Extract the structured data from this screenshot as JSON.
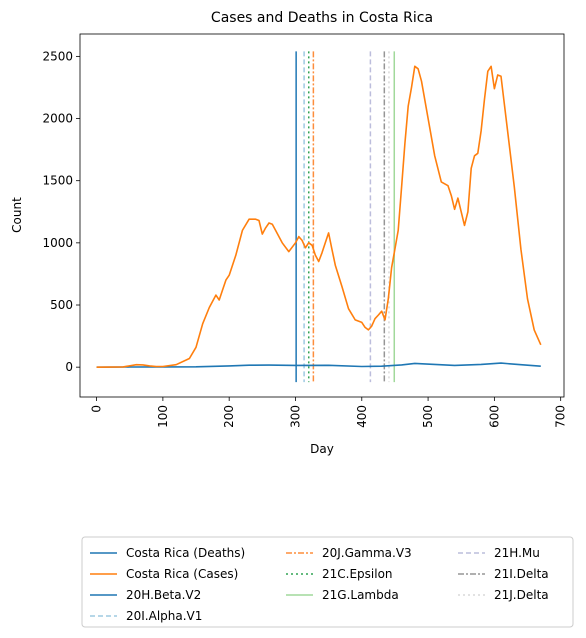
{
  "chart_data": {
    "type": "line",
    "title": "Cases and Deaths in Costa Rica",
    "xlabel": "Day",
    "ylabel": "Count",
    "xlim": [
      -25,
      705
    ],
    "ylim": [
      -240,
      2680
    ],
    "xticks": [
      0,
      100,
      200,
      300,
      400,
      500,
      600,
      700
    ],
    "yticks": [
      0,
      500,
      1000,
      1500,
      2000,
      2500
    ],
    "series": [
      {
        "name": "Costa Rica (Deaths)",
        "color": "#1f77b4",
        "x": [
          0,
          50,
          100,
          150,
          200,
          230,
          260,
          300,
          350,
          400,
          430,
          460,
          480,
          510,
          540,
          580,
          610,
          640,
          670
        ],
        "values": [
          0,
          1,
          2,
          3,
          10,
          16,
          17,
          14,
          15,
          5,
          8,
          18,
          30,
          22,
          14,
          22,
          33,
          20,
          8
        ]
      },
      {
        "name": "Costa Rica (Cases)",
        "color": "#ff7f0e",
        "x": [
          0,
          40,
          60,
          70,
          80,
          90,
          100,
          120,
          140,
          150,
          160,
          170,
          180,
          185,
          190,
          195,
          200,
          210,
          220,
          230,
          240,
          245,
          250,
          255,
          260,
          265,
          270,
          280,
          290,
          300,
          305,
          310,
          315,
          320,
          325,
          330,
          335,
          340,
          345,
          350,
          355,
          360,
          370,
          380,
          390,
          400,
          405,
          410,
          415,
          420,
          425,
          430,
          435,
          440,
          445,
          450,
          455,
          460,
          465,
          470,
          475,
          480,
          485,
          490,
          500,
          510,
          520,
          530,
          535,
          540,
          545,
          550,
          555,
          560,
          565,
          570,
          575,
          580,
          585,
          590,
          595,
          600,
          605,
          610,
          620,
          630,
          640,
          650,
          660,
          670
        ],
        "values": [
          0,
          2,
          20,
          18,
          10,
          5,
          5,
          20,
          70,
          160,
          350,
          480,
          580,
          540,
          620,
          700,
          740,
          900,
          1100,
          1190,
          1190,
          1180,
          1070,
          1120,
          1160,
          1150,
          1100,
          1000,
          930,
          1000,
          1050,
          1020,
          960,
          1000,
          980,
          900,
          850,
          920,
          1000,
          1080,
          950,
          820,
          650,
          470,
          380,
          360,
          320,
          300,
          330,
          390,
          420,
          450,
          380,
          550,
          800,
          950,
          1100,
          1450,
          1800,
          2100,
          2250,
          2420,
          2400,
          2300,
          2000,
          1700,
          1490,
          1460,
          1380,
          1270,
          1360,
          1250,
          1140,
          1250,
          1600,
          1700,
          1720,
          1900,
          2150,
          2380,
          2420,
          2240,
          2350,
          2340,
          1900,
          1450,
          950,
          550,
          300,
          180
        ]
      }
    ],
    "variant_lines": [
      {
        "name": "20H.Beta.V2",
        "x": 301,
        "color": "#1f77b4",
        "style": "solid"
      },
      {
        "name": "20I.Alpha.V1",
        "x": 313,
        "color": "#9ecae1",
        "style": "dashed"
      },
      {
        "name": "20J.Gamma.V3",
        "x": 327,
        "color": "#fd8d3c",
        "style": "dashdot"
      },
      {
        "name": "21C.Epsilon",
        "x": 320,
        "color": "#31a354",
        "style": "dotted"
      },
      {
        "name": "21G.Lambda",
        "x": 449,
        "color": "#a1d99b",
        "style": "solid"
      },
      {
        "name": "21H.Mu",
        "x": 413,
        "color": "#bcbddc",
        "style": "dashed"
      },
      {
        "name": "21I.Delta",
        "x": 434,
        "color": "#969696",
        "style": "dashdot"
      },
      {
        "name": "21J.Delta",
        "x": 441,
        "color": "#d9d9d9",
        "style": "dotted"
      }
    ],
    "legend": {
      "placement": "below",
      "columns": [
        [
          "Costa Rica (Deaths)",
          "Costa Rica (Cases)",
          "20H.Beta.V2",
          "20I.Alpha.V1"
        ],
        [
          "20J.Gamma.V3",
          "21C.Epsilon",
          "21G.Lambda"
        ],
        [
          "21H.Mu",
          "21I.Delta",
          "21J.Delta"
        ]
      ]
    },
    "grid": false
  }
}
